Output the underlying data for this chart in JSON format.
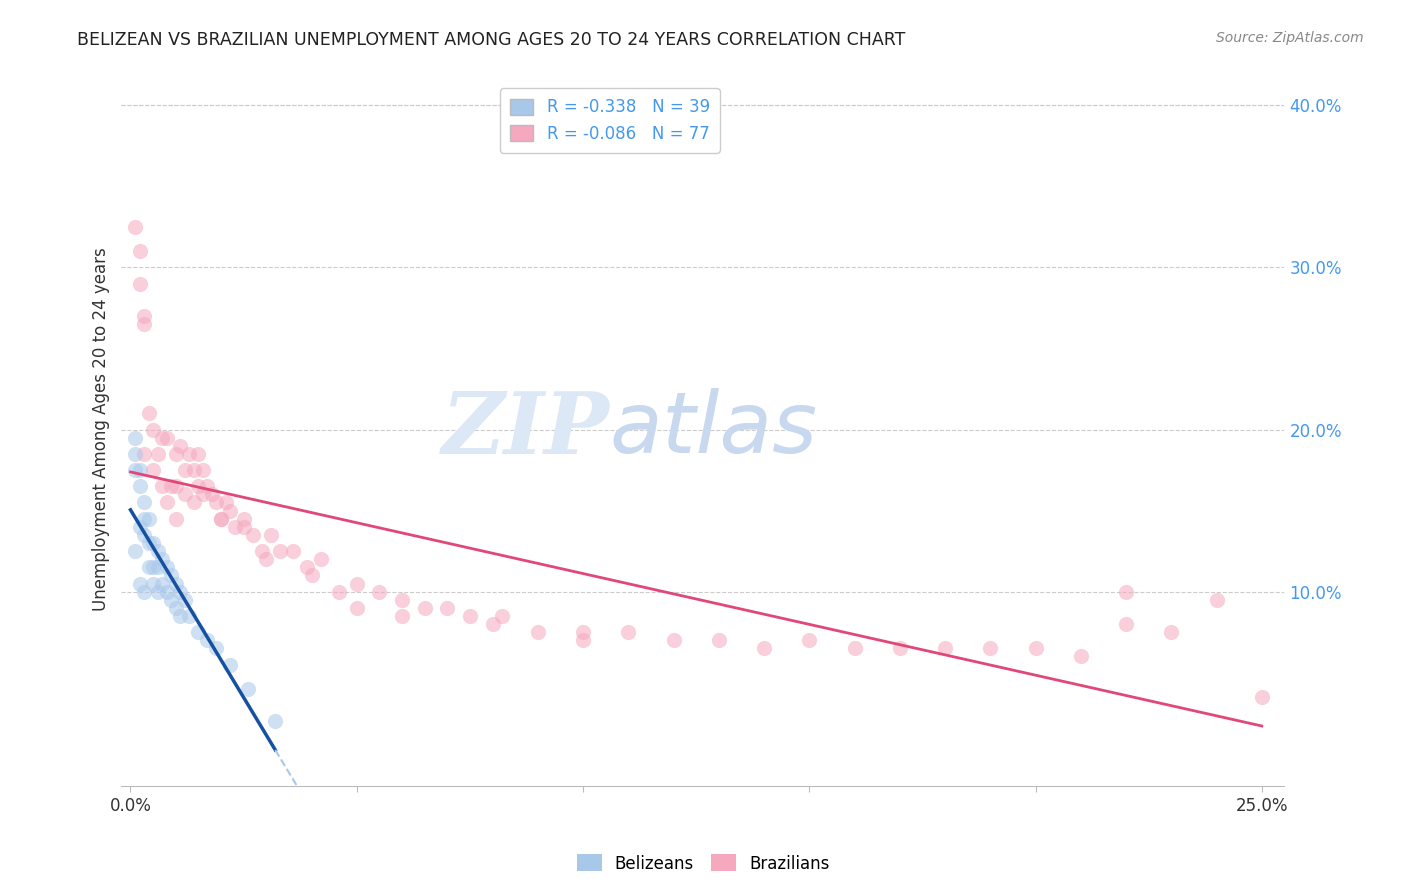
{
  "title": "BELIZEAN VS BRAZILIAN UNEMPLOYMENT AMONG AGES 20 TO 24 YEARS CORRELATION CHART",
  "source": "Source: ZipAtlas.com",
  "xlabel_ticks": [
    "0.0%",
    "",
    "",
    "",
    "",
    "25.0%"
  ],
  "xlabel_vals": [
    0.0,
    0.05,
    0.1,
    0.15,
    0.2,
    0.25
  ],
  "ylabel_right_ticks": [
    "10.0%",
    "20.0%",
    "30.0%",
    "40.0%"
  ],
  "ylabel_right_vals": [
    0.1,
    0.2,
    0.3,
    0.4
  ],
  "ylabel": "Unemployment Among Ages 20 to 24 years",
  "xlim": [
    -0.002,
    0.255
  ],
  "ylim": [
    -0.02,
    0.42
  ],
  "legend_bel_label": "R = -0.338   N = 39",
  "legend_bra_label": "R = -0.086   N = 77",
  "belizean_x": [
    0.001,
    0.001,
    0.001,
    0.001,
    0.002,
    0.002,
    0.002,
    0.002,
    0.003,
    0.003,
    0.003,
    0.003,
    0.004,
    0.004,
    0.004,
    0.005,
    0.005,
    0.005,
    0.006,
    0.006,
    0.006,
    0.007,
    0.007,
    0.008,
    0.008,
    0.009,
    0.009,
    0.01,
    0.01,
    0.011,
    0.011,
    0.012,
    0.013,
    0.015,
    0.017,
    0.019,
    0.022,
    0.026,
    0.032
  ],
  "belizean_y": [
    0.195,
    0.185,
    0.175,
    0.125,
    0.175,
    0.165,
    0.14,
    0.105,
    0.155,
    0.145,
    0.135,
    0.1,
    0.145,
    0.13,
    0.115,
    0.13,
    0.115,
    0.105,
    0.125,
    0.115,
    0.1,
    0.12,
    0.105,
    0.115,
    0.1,
    0.11,
    0.095,
    0.105,
    0.09,
    0.1,
    0.085,
    0.095,
    0.085,
    0.075,
    0.07,
    0.065,
    0.055,
    0.04,
    0.02
  ],
  "brazilian_x": [
    0.001,
    0.002,
    0.002,
    0.003,
    0.003,
    0.003,
    0.004,
    0.005,
    0.005,
    0.006,
    0.007,
    0.007,
    0.008,
    0.009,
    0.01,
    0.01,
    0.011,
    0.012,
    0.013,
    0.014,
    0.015,
    0.015,
    0.016,
    0.017,
    0.018,
    0.019,
    0.02,
    0.021,
    0.022,
    0.023,
    0.025,
    0.027,
    0.029,
    0.031,
    0.033,
    0.036,
    0.039,
    0.042,
    0.046,
    0.05,
    0.055,
    0.06,
    0.065,
    0.07,
    0.075,
    0.082,
    0.09,
    0.1,
    0.11,
    0.12,
    0.13,
    0.14,
    0.15,
    0.16,
    0.17,
    0.18,
    0.19,
    0.2,
    0.21,
    0.22,
    0.23,
    0.24,
    0.25,
    0.008,
    0.01,
    0.012,
    0.014,
    0.016,
    0.02,
    0.025,
    0.03,
    0.04,
    0.05,
    0.06,
    0.08,
    0.1,
    0.22
  ],
  "brazilian_y": [
    0.325,
    0.31,
    0.29,
    0.27,
    0.265,
    0.185,
    0.21,
    0.2,
    0.175,
    0.185,
    0.195,
    0.165,
    0.195,
    0.165,
    0.185,
    0.165,
    0.19,
    0.175,
    0.185,
    0.175,
    0.165,
    0.185,
    0.175,
    0.165,
    0.16,
    0.155,
    0.145,
    0.155,
    0.15,
    0.14,
    0.145,
    0.135,
    0.125,
    0.135,
    0.125,
    0.125,
    0.115,
    0.12,
    0.1,
    0.105,
    0.1,
    0.095,
    0.09,
    0.09,
    0.085,
    0.085,
    0.075,
    0.075,
    0.075,
    0.07,
    0.07,
    0.065,
    0.07,
    0.065,
    0.065,
    0.065,
    0.065,
    0.065,
    0.06,
    0.08,
    0.075,
    0.095,
    0.035,
    0.155,
    0.145,
    0.16,
    0.155,
    0.16,
    0.145,
    0.14,
    0.12,
    0.11,
    0.09,
    0.085,
    0.08,
    0.07,
    0.1
  ],
  "belizean_color": "#a8c8ea",
  "brazilian_color": "#f5a8be",
  "belizean_line_color": "#1650a0",
  "brazilian_line_color": "#e04878",
  "dashed_line_color": "#a8c8ea",
  "bg_color": "#ffffff",
  "grid_color": "#cccccc",
  "title_color": "#222222",
  "axis_label_color": "#333333",
  "right_tick_color": "#4499ee",
  "watermark_zip": "ZIP",
  "watermark_atlas": "atlas",
  "watermark_color_zip": "#dce8f5",
  "watermark_color_atlas": "#c8d8ee",
  "marker_size": 120,
  "marker_alpha": 0.55,
  "bel_line_x_start": 0.0,
  "bel_line_x_end": 0.032,
  "bel_line_x_ext_end": 0.18,
  "bra_line_x_start": 0.0,
  "bra_line_x_end": 0.25
}
